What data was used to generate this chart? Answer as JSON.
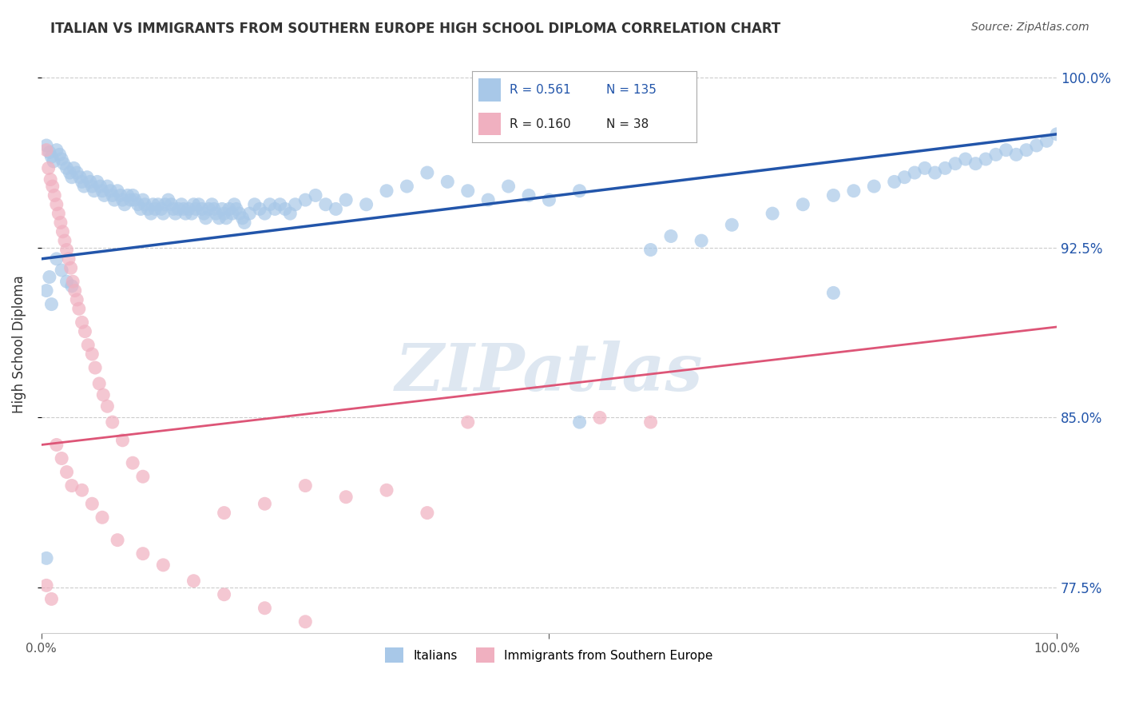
{
  "title": "ITALIAN VS IMMIGRANTS FROM SOUTHERN EUROPE HIGH SCHOOL DIPLOMA CORRELATION CHART",
  "source": "Source: ZipAtlas.com",
  "ylabel": "High School Diploma",
  "ytick_labels": [
    "77.5%",
    "85.0%",
    "92.5%",
    "100.0%"
  ],
  "ytick_values": [
    0.775,
    0.85,
    0.925,
    1.0
  ],
  "blue_R": "0.561",
  "blue_N": "135",
  "pink_R": "0.160",
  "pink_N": "38",
  "legend_label_blue": "Italians",
  "legend_label_pink": "Immigrants from Southern Europe",
  "blue_color": "#a8c8e8",
  "pink_color": "#f0b0c0",
  "blue_line_color": "#2255aa",
  "pink_line_color": "#dd5577",
  "blue_scatter": [
    [
      0.005,
      0.97
    ],
    [
      0.008,
      0.967
    ],
    [
      0.01,
      0.965
    ],
    [
      0.012,
      0.963
    ],
    [
      0.015,
      0.968
    ],
    [
      0.018,
      0.966
    ],
    [
      0.02,
      0.964
    ],
    [
      0.022,
      0.962
    ],
    [
      0.025,
      0.96
    ],
    [
      0.028,
      0.958
    ],
    [
      0.03,
      0.956
    ],
    [
      0.032,
      0.96
    ],
    [
      0.035,
      0.958
    ],
    [
      0.038,
      0.956
    ],
    [
      0.04,
      0.954
    ],
    [
      0.042,
      0.952
    ],
    [
      0.045,
      0.956
    ],
    [
      0.048,
      0.954
    ],
    [
      0.05,
      0.952
    ],
    [
      0.052,
      0.95
    ],
    [
      0.055,
      0.954
    ],
    [
      0.058,
      0.952
    ],
    [
      0.06,
      0.95
    ],
    [
      0.062,
      0.948
    ],
    [
      0.065,
      0.952
    ],
    [
      0.068,
      0.95
    ],
    [
      0.07,
      0.948
    ],
    [
      0.072,
      0.946
    ],
    [
      0.075,
      0.95
    ],
    [
      0.078,
      0.948
    ],
    [
      0.08,
      0.946
    ],
    [
      0.082,
      0.944
    ],
    [
      0.085,
      0.948
    ],
    [
      0.088,
      0.946
    ],
    [
      0.09,
      0.948
    ],
    [
      0.092,
      0.946
    ],
    [
      0.095,
      0.944
    ],
    [
      0.098,
      0.942
    ],
    [
      0.1,
      0.946
    ],
    [
      0.102,
      0.944
    ],
    [
      0.105,
      0.942
    ],
    [
      0.108,
      0.94
    ],
    [
      0.11,
      0.944
    ],
    [
      0.112,
      0.942
    ],
    [
      0.115,
      0.944
    ],
    [
      0.118,
      0.942
    ],
    [
      0.12,
      0.94
    ],
    [
      0.122,
      0.944
    ],
    [
      0.125,
      0.946
    ],
    [
      0.128,
      0.944
    ],
    [
      0.13,
      0.942
    ],
    [
      0.132,
      0.94
    ],
    [
      0.135,
      0.942
    ],
    [
      0.138,
      0.944
    ],
    [
      0.14,
      0.942
    ],
    [
      0.142,
      0.94
    ],
    [
      0.145,
      0.942
    ],
    [
      0.148,
      0.94
    ],
    [
      0.15,
      0.944
    ],
    [
      0.152,
      0.942
    ],
    [
      0.155,
      0.944
    ],
    [
      0.158,
      0.942
    ],
    [
      0.16,
      0.94
    ],
    [
      0.162,
      0.938
    ],
    [
      0.165,
      0.942
    ],
    [
      0.168,
      0.944
    ],
    [
      0.17,
      0.942
    ],
    [
      0.172,
      0.94
    ],
    [
      0.175,
      0.938
    ],
    [
      0.178,
      0.942
    ],
    [
      0.18,
      0.94
    ],
    [
      0.182,
      0.938
    ],
    [
      0.185,
      0.942
    ],
    [
      0.188,
      0.94
    ],
    [
      0.19,
      0.944
    ],
    [
      0.192,
      0.942
    ],
    [
      0.195,
      0.94
    ],
    [
      0.198,
      0.938
    ],
    [
      0.2,
      0.936
    ],
    [
      0.205,
      0.94
    ],
    [
      0.21,
      0.944
    ],
    [
      0.215,
      0.942
    ],
    [
      0.22,
      0.94
    ],
    [
      0.225,
      0.944
    ],
    [
      0.23,
      0.942
    ],
    [
      0.235,
      0.944
    ],
    [
      0.24,
      0.942
    ],
    [
      0.245,
      0.94
    ],
    [
      0.25,
      0.944
    ],
    [
      0.26,
      0.946
    ],
    [
      0.27,
      0.948
    ],
    [
      0.28,
      0.944
    ],
    [
      0.29,
      0.942
    ],
    [
      0.3,
      0.946
    ],
    [
      0.32,
      0.944
    ],
    [
      0.34,
      0.95
    ],
    [
      0.36,
      0.952
    ],
    [
      0.38,
      0.958
    ],
    [
      0.4,
      0.954
    ],
    [
      0.42,
      0.95
    ],
    [
      0.44,
      0.946
    ],
    [
      0.46,
      0.952
    ],
    [
      0.48,
      0.948
    ],
    [
      0.5,
      0.946
    ],
    [
      0.53,
      0.95
    ],
    [
      0.6,
      0.924
    ],
    [
      0.62,
      0.93
    ],
    [
      0.65,
      0.928
    ],
    [
      0.68,
      0.935
    ],
    [
      0.72,
      0.94
    ],
    [
      0.75,
      0.944
    ],
    [
      0.78,
      0.948
    ],
    [
      0.8,
      0.95
    ],
    [
      0.82,
      0.952
    ],
    [
      0.84,
      0.954
    ],
    [
      0.85,
      0.956
    ],
    [
      0.86,
      0.958
    ],
    [
      0.87,
      0.96
    ],
    [
      0.88,
      0.958
    ],
    [
      0.89,
      0.96
    ],
    [
      0.9,
      0.962
    ],
    [
      0.91,
      0.964
    ],
    [
      0.92,
      0.962
    ],
    [
      0.93,
      0.964
    ],
    [
      0.94,
      0.966
    ],
    [
      0.95,
      0.968
    ],
    [
      0.96,
      0.966
    ],
    [
      0.97,
      0.968
    ],
    [
      0.98,
      0.97
    ],
    [
      0.99,
      0.972
    ],
    [
      1.0,
      0.975
    ],
    [
      0.015,
      0.92
    ],
    [
      0.02,
      0.915
    ],
    [
      0.025,
      0.91
    ],
    [
      0.03,
      0.908
    ],
    [
      0.005,
      0.906
    ],
    [
      0.008,
      0.912
    ],
    [
      0.01,
      0.9
    ],
    [
      0.53,
      0.848
    ],
    [
      0.78,
      0.905
    ],
    [
      0.005,
      0.788
    ]
  ],
  "pink_scatter": [
    [
      0.005,
      0.968
    ],
    [
      0.007,
      0.96
    ],
    [
      0.009,
      0.955
    ],
    [
      0.011,
      0.952
    ],
    [
      0.013,
      0.948
    ],
    [
      0.015,
      0.944
    ],
    [
      0.017,
      0.94
    ],
    [
      0.019,
      0.936
    ],
    [
      0.021,
      0.932
    ],
    [
      0.023,
      0.928
    ],
    [
      0.025,
      0.924
    ],
    [
      0.027,
      0.92
    ],
    [
      0.029,
      0.916
    ],
    [
      0.031,
      0.91
    ],
    [
      0.033,
      0.906
    ],
    [
      0.035,
      0.902
    ],
    [
      0.037,
      0.898
    ],
    [
      0.04,
      0.892
    ],
    [
      0.043,
      0.888
    ],
    [
      0.046,
      0.882
    ],
    [
      0.05,
      0.878
    ],
    [
      0.053,
      0.872
    ],
    [
      0.057,
      0.865
    ],
    [
      0.061,
      0.86
    ],
    [
      0.065,
      0.855
    ],
    [
      0.07,
      0.848
    ],
    [
      0.08,
      0.84
    ],
    [
      0.09,
      0.83
    ],
    [
      0.1,
      0.824
    ],
    [
      0.015,
      0.838
    ],
    [
      0.02,
      0.832
    ],
    [
      0.025,
      0.826
    ],
    [
      0.03,
      0.82
    ],
    [
      0.04,
      0.818
    ],
    [
      0.05,
      0.812
    ],
    [
      0.06,
      0.806
    ],
    [
      0.075,
      0.796
    ],
    [
      0.1,
      0.79
    ],
    [
      0.12,
      0.785
    ],
    [
      0.15,
      0.778
    ],
    [
      0.18,
      0.772
    ],
    [
      0.22,
      0.766
    ],
    [
      0.26,
      0.76
    ],
    [
      0.18,
      0.808
    ],
    [
      0.22,
      0.812
    ],
    [
      0.26,
      0.82
    ],
    [
      0.3,
      0.815
    ],
    [
      0.34,
      0.818
    ],
    [
      0.38,
      0.808
    ],
    [
      0.42,
      0.848
    ],
    [
      0.55,
      0.85
    ],
    [
      0.6,
      0.848
    ],
    [
      0.005,
      0.776
    ],
    [
      0.01,
      0.77
    ]
  ],
  "blue_line_x": [
    0.0,
    1.0
  ],
  "blue_line_y": [
    0.92,
    0.975
  ],
  "pink_line_x": [
    0.0,
    1.0
  ],
  "pink_line_y": [
    0.838,
    0.89
  ],
  "xmin": 0.0,
  "xmax": 1.0,
  "ymin": 0.755,
  "ymax": 1.01,
  "background_color": "#ffffff",
  "watermark_text": "ZIPatlas",
  "watermark_color": "#c8d8e8",
  "title_color": "#333333",
  "source_color": "#555555",
  "grid_color": "#cccccc",
  "axis_label_color": "#333333"
}
